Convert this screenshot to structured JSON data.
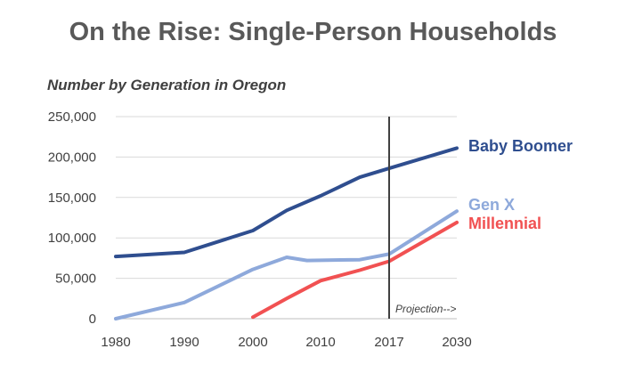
{
  "chart_data": {
    "type": "line",
    "title": "On the Rise: Single-Person Households",
    "subtitle": "Number by Generation in Oregon",
    "xlabel": "",
    "ylabel": "",
    "x_ticks": [
      "1980",
      "1990",
      "2000",
      "2010",
      "2017",
      "2030"
    ],
    "y_ticks": [
      "0",
      "50,000",
      "100,000",
      "150,000",
      "200,000",
      "250,000"
    ],
    "ylim": [
      0,
      250000
    ],
    "grid": true,
    "legend": "labels at line ends (right)",
    "annotation": "Projection-->",
    "projection_start": 2017,
    "series": [
      {
        "name": "Baby Boomer",
        "color": "#2F4E8F",
        "points": [
          [
            1980,
            77000
          ],
          [
            1990,
            82000
          ],
          [
            2000,
            109000
          ],
          [
            2005,
            134000
          ],
          [
            2010,
            152000
          ],
          [
            2014,
            175000
          ],
          [
            2017,
            186000
          ],
          [
            2030,
            211000
          ]
        ]
      },
      {
        "name": "Gen X",
        "color": "#8EA9DB",
        "points": [
          [
            1980,
            0
          ],
          [
            1990,
            20000
          ],
          [
            2000,
            61000
          ],
          [
            2005,
            76000
          ],
          [
            2008,
            72000
          ],
          [
            2014,
            73000
          ],
          [
            2017,
            80000
          ],
          [
            2030,
            133000
          ]
        ]
      },
      {
        "name": "Millennial",
        "color": "#F15152",
        "points": [
          [
            2000,
            2000
          ],
          [
            2005,
            25000
          ],
          [
            2010,
            47000
          ],
          [
            2014,
            60000
          ],
          [
            2017,
            71000
          ],
          [
            2030,
            119000
          ]
        ]
      }
    ]
  }
}
